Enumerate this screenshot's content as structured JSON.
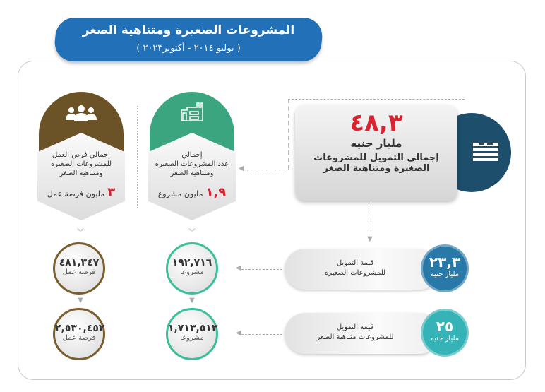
{
  "header": {
    "title": "المشروعات الصغيرة ومتناهية الصغر",
    "period": "( يوليو ٢٠١٤ - أكتوبر٢٠٢٣ )"
  },
  "main": {
    "value": "٤٨,٣",
    "unit": "مليار جنيه",
    "label_line1": "إجمالي التمويل للمشروعات",
    "label_line2": "الصغيرة ومتناهية الصغر",
    "icon": "money-stack-icon",
    "color": "#1d4e6b"
  },
  "jobs": {
    "icon": "people-icon",
    "color": "#6b5227",
    "label": [
      "إجمالي فرص العمل",
      "للمشروعات الصغيرة",
      "ومتناهية الصغر"
    ],
    "value": "٣",
    "value_unit": "مليون فرصة عمل",
    "circles": [
      {
        "value": "٤٨١,٣٤٧",
        "unit": "فرصة عمل"
      },
      {
        "value": "٢,٥٣٠,٤٥٢",
        "unit": "فرصة عمل"
      }
    ]
  },
  "projects": {
    "icon": "factory-icon",
    "color": "#3aa57f",
    "label": [
      "إجمالي",
      "عدد المشروعات الصغيرة",
      "ومتناهية الصغر"
    ],
    "value": "١,٩",
    "value_unit": "مليون مشروع",
    "circles": [
      {
        "value": "١٩٢,٧١٦",
        "unit": "مشروعا"
      },
      {
        "value": "١,٧١٣,٥١٣",
        "unit": "مشروعا"
      }
    ]
  },
  "funding": [
    {
      "label1": "قيمة التمويل",
      "label2": "للمشروعات الصغيرة",
      "value": "٢٣,٣",
      "unit": "مليار جنيه",
      "color": "#2878a8"
    },
    {
      "label1": "قيمة التمويل",
      "label2": "للمشروعات متناهية الصغر",
      "value": "٢٥",
      "unit": "مليار جنيه",
      "color": "#35b3b6"
    }
  ]
}
